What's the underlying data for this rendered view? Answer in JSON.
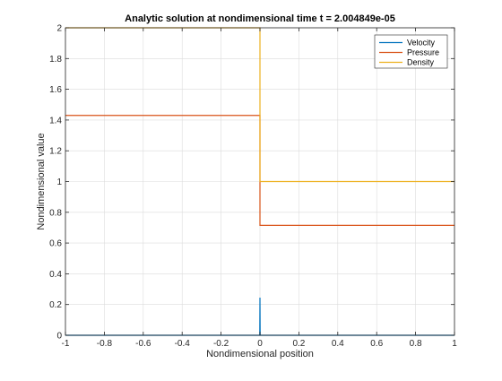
{
  "chart_data": {
    "type": "line",
    "title": "Analytic solution at nondimensional time t = 2.004849e-05",
    "xlabel": "Nondimensional position",
    "ylabel": "Nondimensional value",
    "xlim": [
      -1,
      1
    ],
    "ylim": [
      0,
      2
    ],
    "xticks": [
      -1,
      -0.8,
      -0.6,
      -0.4,
      -0.2,
      0,
      0.2,
      0.4,
      0.6,
      0.8,
      1
    ],
    "xtick_labels": [
      "-1",
      "-0.8",
      "-0.6",
      "-0.4",
      "-0.2",
      "0",
      "0.2",
      "0.4",
      "0.6",
      "0.8",
      "1"
    ],
    "yticks": [
      0,
      0.2,
      0.4,
      0.6,
      0.8,
      1,
      1.2,
      1.4,
      1.6,
      1.8,
      2
    ],
    "ytick_labels": [
      "0",
      "0.2",
      "0.4",
      "0.6",
      "0.8",
      "1",
      "1.2",
      "1.4",
      "1.6",
      "1.8",
      "2"
    ],
    "grid": true,
    "legend_position": "top-right",
    "series": [
      {
        "name": "Velocity",
        "color": "#0072BD",
        "x": [
          -1,
          -0.001,
          0,
          0.001,
          1
        ],
        "y": [
          0,
          0,
          0.245,
          0,
          0
        ]
      },
      {
        "name": "Pressure",
        "color": "#D95319",
        "x": [
          -1,
          0,
          0,
          1
        ],
        "y": [
          1.43,
          1.43,
          0.715,
          0.715
        ]
      },
      {
        "name": "Density",
        "color": "#EDB120",
        "x": [
          -1,
          0,
          0,
          1
        ],
        "y": [
          2,
          2,
          1,
          1
        ]
      }
    ]
  }
}
